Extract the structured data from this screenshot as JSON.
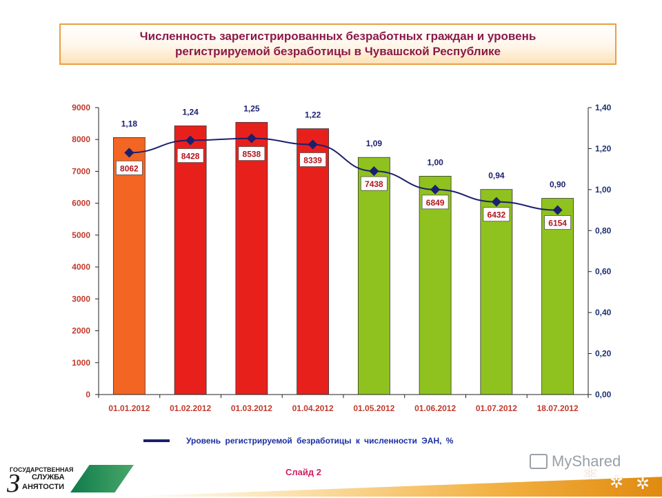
{
  "title": {
    "line1": "Численность зарегистрированных безработных граждан и уровень",
    "line2": "регистрируемой безработицы в Чувашской Республике"
  },
  "chart_data": {
    "type": "bar",
    "categories": [
      "01.01.2012",
      "01.02.2012",
      "01.03.2012",
      "01.04.2012",
      "01.05.2012",
      "01.06.2012",
      "01.07.2012",
      "18.07.2012"
    ],
    "series": [
      {
        "type": "bar",
        "axis": "left",
        "values": [
          8062,
          8428,
          8538,
          8339,
          7438,
          6849,
          6432,
          6154
        ],
        "labels": [
          "8062",
          "8428",
          "8538",
          "8339",
          "7438",
          "6849",
          "6432",
          "6154"
        ],
        "colors": [
          "#f26522",
          "#e8201c",
          "#e8201c",
          "#e8201c",
          "#8fc21e",
          "#8fc21e",
          "#8fc21e",
          "#8fc21e"
        ]
      },
      {
        "type": "line",
        "axis": "right",
        "name": "Уровень регистрируемой безработицы к численности ЭАН, %",
        "values": [
          1.18,
          1.24,
          1.25,
          1.22,
          1.09,
          1.0,
          0.94,
          0.9
        ],
        "labels": [
          "1,18",
          "1,24",
          "1,25",
          "1,22",
          "1,09",
          "1,00",
          "0,94",
          "0,90"
        ],
        "color": "#1a1f6e"
      }
    ],
    "y_left": {
      "range": [
        0,
        9000
      ],
      "ticks": [
        "0",
        "1000",
        "2000",
        "3000",
        "4000",
        "5000",
        "6000",
        "7000",
        "8000",
        "9000"
      ]
    },
    "y_right": {
      "range": [
        0,
        1.4
      ],
      "ticks": [
        "0,00",
        "0,20",
        "0,40",
        "0,60",
        "0,80",
        "1,00",
        "1,20",
        "1,40"
      ]
    },
    "legend_position": "bottom",
    "grid": false
  },
  "footer": {
    "slide_label": "Слайд 2",
    "logo_line1": "ГОСУДАРСТВЕННАЯ",
    "logo_line2": "СЛУЖБА",
    "logo_big_letter": "З",
    "logo_line3": "АНЯТОСТИ",
    "watermark": "MyShared"
  },
  "colors": {
    "axis_left_text": "#c0392b",
    "axis_right_text": "#1a2f70",
    "category_text": "#c0392b",
    "title_text": "#8a1a4a"
  }
}
